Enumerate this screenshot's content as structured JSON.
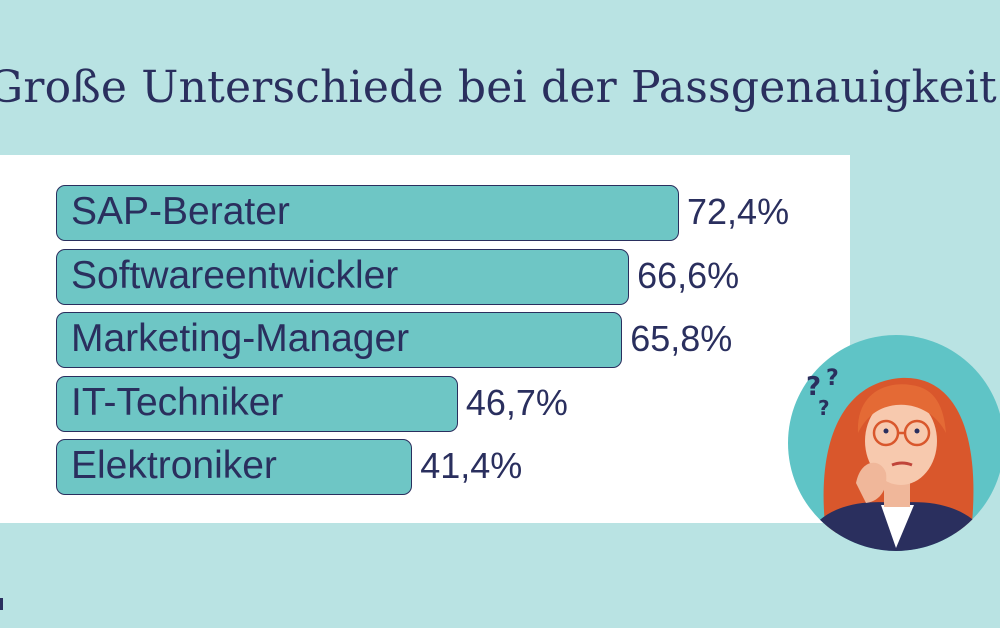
{
  "title": "Große Unterschiede bei der Passgenauigkeit",
  "colors": {
    "background": "#b9e3e3",
    "bar_fill": "#6ec6c5",
    "bar_stroke": "#2a2f5e",
    "text": "#2a2f5e"
  },
  "illustration": {
    "icon": "thinking-woman-illustration"
  },
  "chart_data": {
    "type": "bar",
    "orientation": "horizontal",
    "categories": [
      "SAP-Berater",
      "Softwareentwickler",
      "Marketing-Manager",
      "IT-Techniker",
      "Elektroniker"
    ],
    "values": [
      72.4,
      66.6,
      65.8,
      46.7,
      41.4
    ],
    "value_labels": [
      "72,4%",
      "66,6%",
      "65,8%",
      "46,7%",
      "41,4%"
    ],
    "unit": "%"
  }
}
